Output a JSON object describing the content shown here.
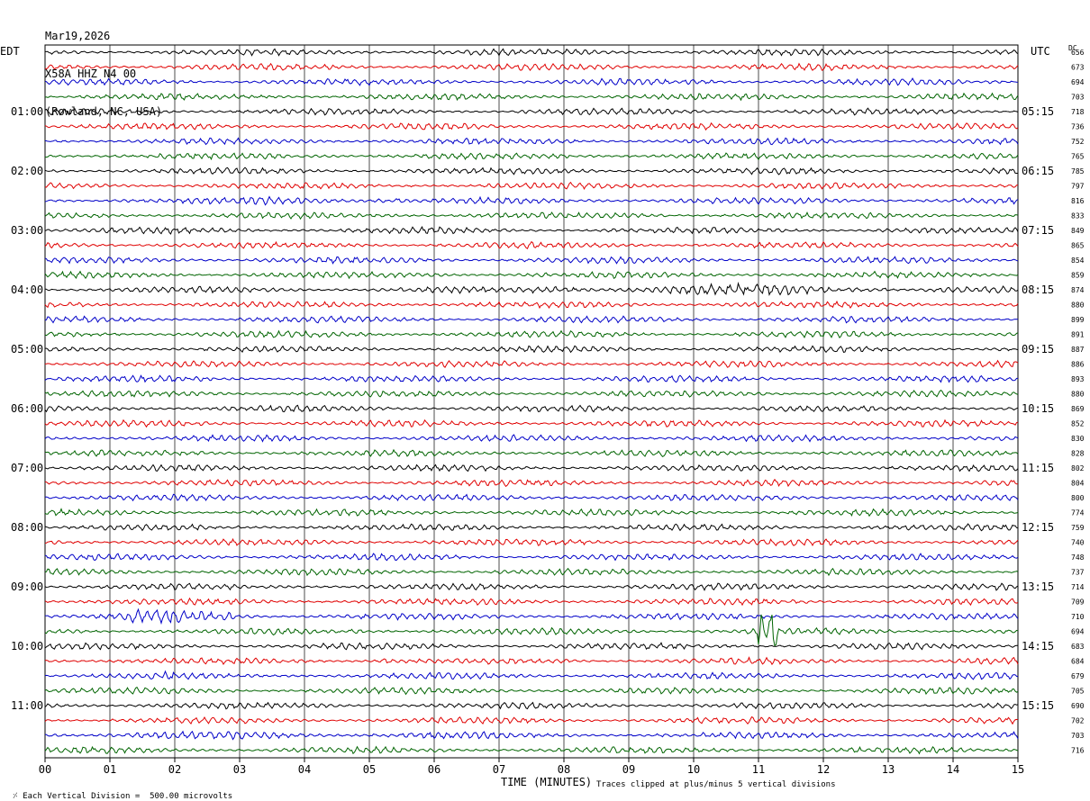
{
  "header": {
    "date": "Mar19,2026",
    "station": "X58A HHZ N4 00",
    "location": "(Rowland, NC, USA)"
  },
  "left_zone": "EDT",
  "right_zone": "UTC",
  "dc_label": "DC",
  "footer": {
    "scale_note": "Each Vertical Division =  500.00 microvolts",
    "clip_note": "Traces clipped at plus/minus 5 vertical divisions",
    "xlabel": "TIME (MINUTES)"
  },
  "colors": {
    "trace_cycle": [
      "#000000",
      "#e00000",
      "#0000c8",
      "#006400"
    ],
    "grid": "#000000"
  },
  "chart_data": {
    "type": "line",
    "subtype": "helicorder",
    "xlabel": "TIME (MINUTES)",
    "xlim": [
      0,
      15
    ],
    "x_ticks": [
      "00",
      "01",
      "02",
      "03",
      "04",
      "05",
      "06",
      "07",
      "08",
      "09",
      "10",
      "11",
      "12",
      "13",
      "14",
      "15"
    ],
    "rows_per_hour": 4,
    "row_minutes": 15,
    "left_hour_labels": [
      "01:00",
      "02:00",
      "03:00",
      "04:00",
      "05:00",
      "06:00",
      "07:00",
      "08:00",
      "09:00",
      "10:00",
      "11:00"
    ],
    "right_hour_labels": [
      "05:15",
      "06:15",
      "07:15",
      "08:15",
      "09:15",
      "10:15",
      "11:15",
      "12:15",
      "13:15",
      "14:15",
      "15:15"
    ],
    "dc_offsets": [
      656,
      673,
      694,
      703,
      718,
      736,
      752,
      765,
      785,
      797,
      816,
      833,
      849,
      865,
      854,
      859,
      874,
      880,
      899,
      891,
      887,
      886,
      893,
      880,
      869,
      852,
      830,
      828,
      802,
      804,
      800,
      774,
      759,
      740,
      748,
      737,
      714,
      709,
      710,
      694,
      683,
      684,
      679,
      705,
      690,
      702,
      703,
      716
    ],
    "events": [
      {
        "row": 10,
        "start_min": 3.0,
        "end_min": 5.5,
        "amplitude": 1.8
      },
      {
        "row": 16,
        "start_min": 7.5,
        "end_min": 13.0,
        "amplitude": 1.9
      },
      {
        "row": 38,
        "start_min": 1.2,
        "end_min": 2.9,
        "amplitude": 2.2
      },
      {
        "row": 39,
        "start_min": 4.6,
        "end_min": 5.3,
        "amplitude": 1.5
      },
      {
        "row": 39,
        "start_min": 11.0,
        "end_min": 11.3,
        "amplitude": 6.0
      },
      {
        "row": 41,
        "start_min": 5.2,
        "end_min": 5.35,
        "amplitude": 2.5
      },
      {
        "row": 42,
        "start_min": 1.8,
        "end_min": 2.0,
        "amplitude": 1.6
      },
      {
        "row": 46,
        "start_min": 0.0,
        "end_min": 6.2,
        "amplitude": 1.3
      }
    ]
  }
}
